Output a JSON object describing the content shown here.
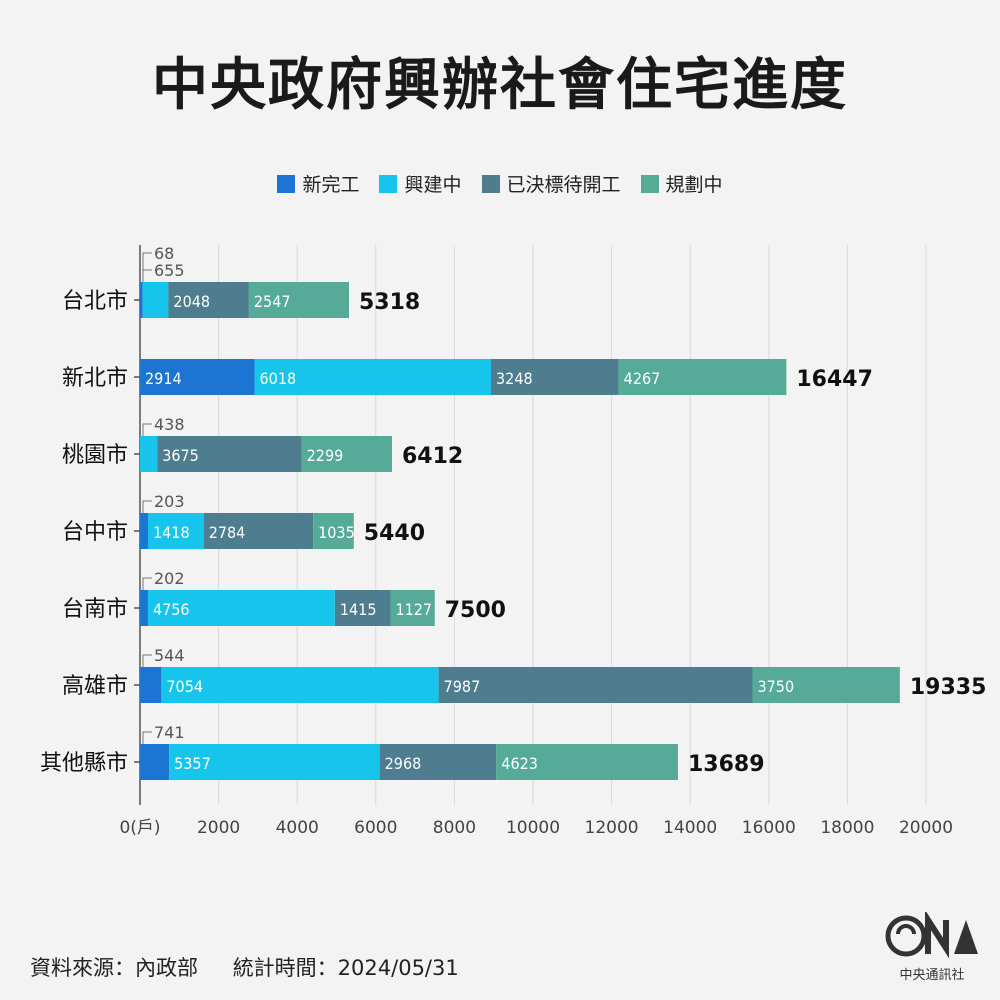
{
  "title": "中央政府興辦社會住宅進度",
  "colors": {
    "新完工": "#1c74d3",
    "興建中": "#17c4ec",
    "已決標待開工": "#4e7d8f",
    "規劃中": "#55ab98"
  },
  "chart_data": {
    "type": "bar",
    "orientation": "horizontal",
    "stacked": true,
    "title": "中央政府興辦社會住宅進度",
    "categories": [
      "台北市",
      "新北市",
      "桃園市",
      "台中市",
      "台南市",
      "高雄市",
      "其他縣市"
    ],
    "series": [
      {
        "name": "新完工",
        "values": [
          68,
          2914,
          0,
          203,
          202,
          544,
          741
        ]
      },
      {
        "name": "興建中",
        "values": [
          655,
          6018,
          438,
          1418,
          4756,
          7054,
          5357
        ]
      },
      {
        "name": "已決標待開工",
        "values": [
          2048,
          3248,
          3675,
          2784,
          1415,
          7987,
          2968
        ]
      },
      {
        "name": "規劃中",
        "values": [
          2547,
          4267,
          2299,
          1035,
          1127,
          3750,
          4623
        ]
      }
    ],
    "totals": [
      5318,
      16447,
      6412,
      5440,
      7500,
      19335,
      13689
    ],
    "xlim": [
      0,
      20000
    ],
    "xticks": [
      "0(戶)",
      "2000",
      "4000",
      "6000",
      "8000",
      "10000",
      "12000",
      "14000",
      "16000",
      "18000",
      "20000"
    ],
    "grid": "vertical",
    "legend": "top-center"
  },
  "footer": {
    "source": "資料來源：內政部",
    "time": "統計時間：2024/05/31"
  },
  "logo": {
    "text": "中央通訊社",
    "mark": "CNA"
  }
}
